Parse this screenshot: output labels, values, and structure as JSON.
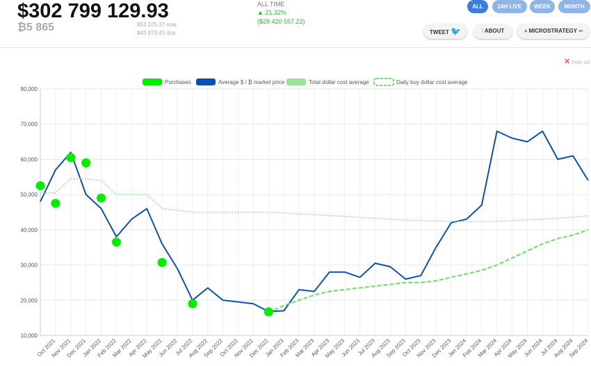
{
  "header": {
    "balance": "$302 799 129.93",
    "btc": "₿5 865",
    "price_now": "$53 225.37 now",
    "price_dca": "$43 873.43 dca",
    "period": "ALL TIME",
    "change_pct": "▲ 21.32%",
    "change_usd": "($28 420 557.22)"
  },
  "nav": {
    "periods": [
      "ALL",
      "24H LIVE",
      "WEEK",
      "MONTH"
    ],
    "links": [
      "TWEET",
      "ABOUT",
      "MICROSTRATEGY"
    ]
  },
  "ad": {
    "hide": "hide ad"
  },
  "chart_data": {
    "type": "line",
    "categories": [
      null,
      "Oct 2021",
      "Nov 2021",
      "Dec 2021",
      "Jan 2022",
      "Feb 2022",
      "Mar 2022",
      "Apr 2022",
      "May 2022",
      "Jun 2022",
      "Jul 2022",
      "Aug 2022",
      "Sep 2022",
      "Oct 2022",
      "Nov 2022",
      "Dec 2022",
      "Jan 2023",
      "Feb 2023",
      "Mar 2023",
      "Apr 2023",
      "May 2023",
      "Jun 2023",
      "Jul 2023",
      "Aug 2023",
      "Sep 2023",
      "Oct 2023",
      "Nov 2023",
      "Dec 2023",
      "Jan 2024",
      "Feb 2024",
      "Mar 2024",
      "Apr 2024",
      "May 2024",
      "Jun 2024",
      "Jul 2024",
      "Aug 2024",
      "Sep 2024"
    ],
    "series": [
      {
        "name": "Purchases",
        "color": "#00ee00",
        "style": "points",
        "values": [
          52500,
          47500,
          60500,
          59000,
          49000,
          36500,
          null,
          null,
          30700,
          null,
          19000,
          null,
          null,
          null,
          null,
          16700,
          null,
          null,
          null,
          null,
          null,
          null,
          null,
          null,
          null,
          null,
          null,
          null,
          null,
          null,
          null,
          null,
          null,
          null,
          null,
          null,
          null
        ]
      },
      {
        "name": "Average $ / ₿ market price",
        "color": "#0b4fb5",
        "style": "solid",
        "values": [
          48000,
          57000,
          62000,
          50000,
          46000,
          38000,
          43000,
          46000,
          36000,
          29000,
          20000,
          23500,
          20000,
          19500,
          19000,
          16800,
          17000,
          23000,
          22500,
          28000,
          28000,
          26500,
          30500,
          29500,
          26000,
          27000,
          35000,
          42000,
          43000,
          47000,
          68000,
          66000,
          65000,
          68000,
          60000,
          61000,
          54000
        ]
      },
      {
        "name": "Total dollar cost average",
        "color": "#9ae39a",
        "style": "dotted",
        "values": [
          50500,
          50500,
          54500,
          54500,
          54000,
          50000,
          50000,
          50000,
          46000,
          45500,
          45000,
          45000,
          45000,
          45000,
          45000,
          45000,
          44800,
          44500,
          44300,
          44000,
          43800,
          43500,
          43300,
          43000,
          42800,
          42600,
          42500,
          42400,
          42300,
          42300,
          42400,
          42600,
          42800,
          43000,
          43300,
          43600,
          44000
        ]
      },
      {
        "name": "Daily buy dollar cost average",
        "color": "#6fe06f",
        "style": "dashed",
        "values": [
          null,
          null,
          null,
          null,
          null,
          null,
          null,
          null,
          null,
          null,
          null,
          null,
          null,
          null,
          null,
          16500,
          18500,
          20000,
          21500,
          22500,
          23000,
          23500,
          24000,
          24500,
          25000,
          25000,
          25500,
          26500,
          27500,
          28500,
          30000,
          32000,
          34000,
          36000,
          37500,
          38500,
          40000
        ]
      }
    ],
    "ylim": [
      10000,
      80000
    ],
    "yticks": [
      {
        "value": 10000,
        "label": "10,000"
      },
      {
        "value": 20000,
        "label": "20,000"
      },
      {
        "value": 30000,
        "label": "30,000"
      },
      {
        "value": 40000,
        "label": "40,000"
      },
      {
        "value": 50000,
        "label": "50,000"
      },
      {
        "value": 60000,
        "label": "60,000"
      },
      {
        "value": 70000,
        "label": "70,000"
      },
      {
        "value": 80000,
        "label": "80,000"
      }
    ],
    "grid": true
  }
}
